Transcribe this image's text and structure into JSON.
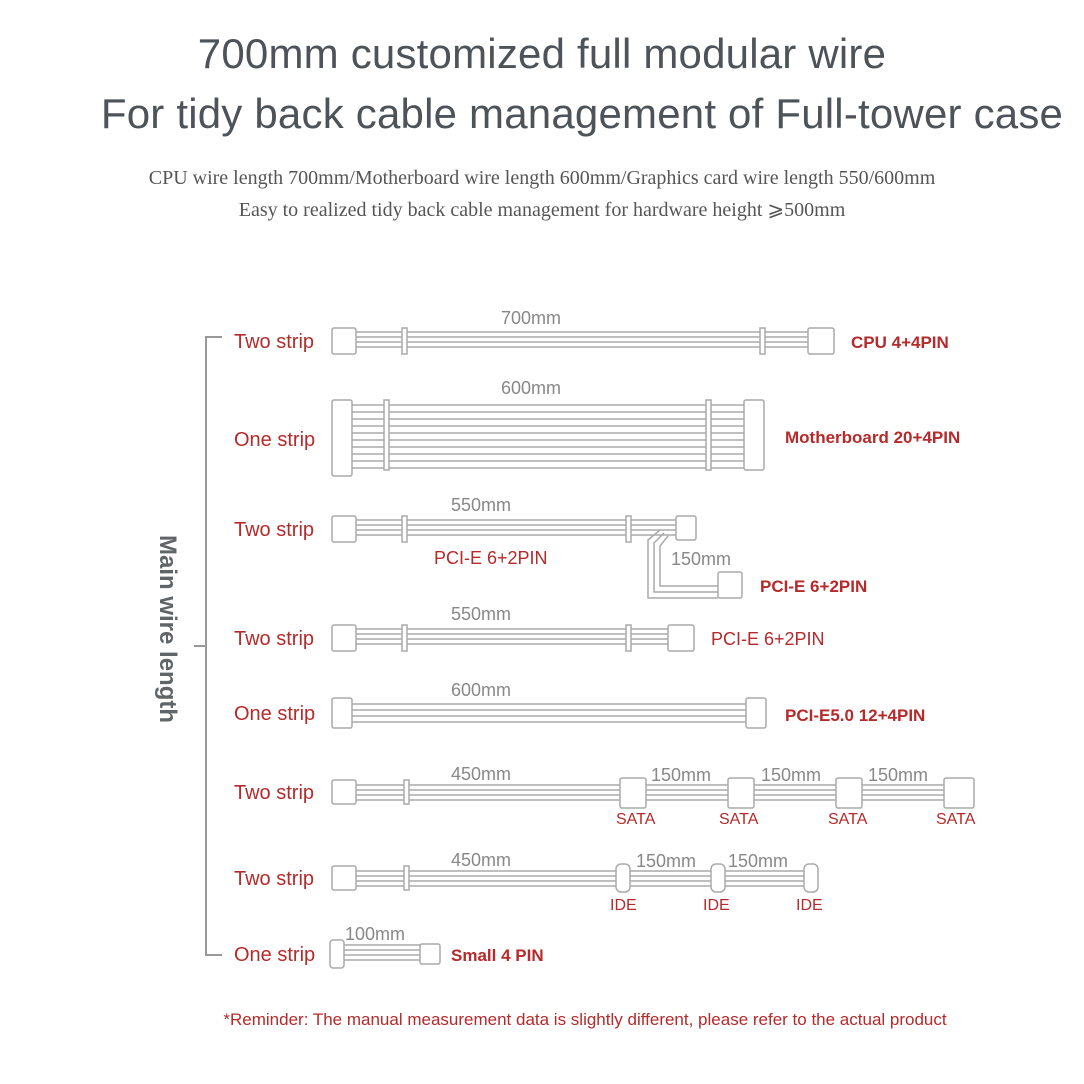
{
  "header": {
    "title_line1": "700mm customized full modular wire",
    "title_line2": "For tidy back cable management of Full-tower case",
    "subtitle_line1": "CPU wire length 700mm/Motherboard wire length 600mm/Graphics card wire length 550/600mm",
    "subtitle_line2": "Easy to realized tidy back cable management for hardware height ⩾500mm"
  },
  "colors": {
    "title": "#4d5358",
    "accent_red": "#b52a2a",
    "label_gray": "#888888",
    "wire": "#b0b0b0"
  },
  "axis_label": "Main wire length",
  "rows": [
    {
      "strip": "Two strip",
      "length": "700mm",
      "connector": "CPU 4+4PIN"
    },
    {
      "strip": "One strip",
      "length": "600mm",
      "connector": "Motherboard 20+4PIN"
    },
    {
      "strip": "Two strip",
      "length": "550mm",
      "connector": "PCI-E 6+2PIN",
      "branch_length": "150mm",
      "branch_connector": "PCI-E 6+2PIN"
    },
    {
      "strip": "Two strip",
      "length": "550mm",
      "connector": "PCI-E 6+2PIN"
    },
    {
      "strip": "One strip",
      "length": "600mm",
      "connector": "PCI-E5.0 12+4PIN"
    },
    {
      "strip": "Two strip",
      "length": "450mm",
      "segments": [
        "150mm",
        "150mm",
        "150mm"
      ],
      "connectors": [
        "SATA",
        "SATA",
        "SATA",
        "SATA"
      ]
    },
    {
      "strip": "Two strip",
      "length": "450mm",
      "segments": [
        "150mm",
        "150mm"
      ],
      "connectors": [
        "IDE",
        "IDE",
        "IDE"
      ]
    },
    {
      "strip": "One strip",
      "length": "100mm",
      "connector": "Small 4 PIN"
    }
  ],
  "reminder": "*Reminder: The manual measurement data is slightly different, please refer to the actual product"
}
